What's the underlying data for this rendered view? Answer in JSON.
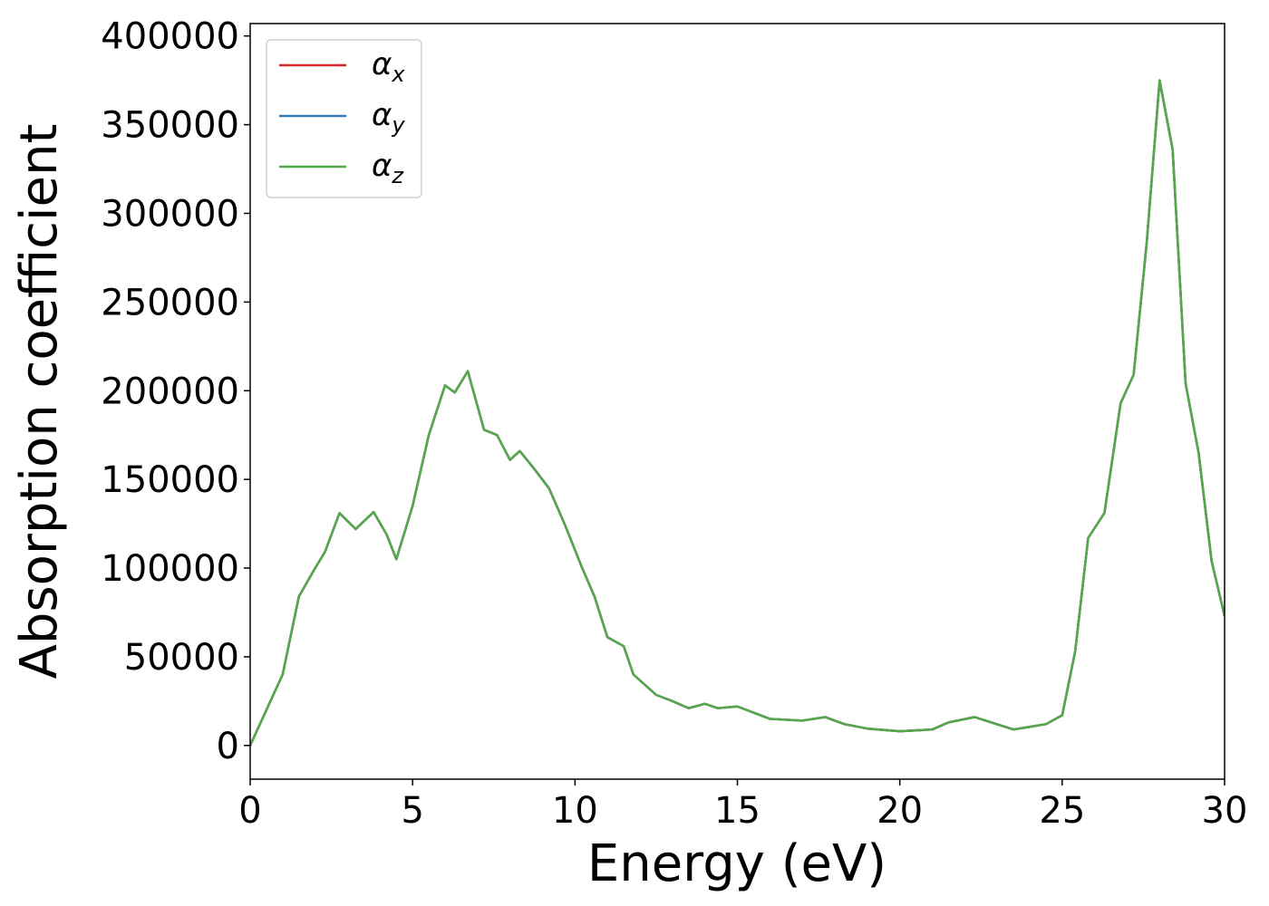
{
  "chart_data": {
    "type": "line",
    "xlabel": "Energy (eV)",
    "ylabel": "Absorption coefficient",
    "x": [
      0,
      0.5,
      1.0,
      1.5,
      2.0,
      2.3,
      2.75,
      3.25,
      3.8,
      4.2,
      4.5,
      5.0,
      5.5,
      6.0,
      6.3,
      6.7,
      7.2,
      7.6,
      8.0,
      8.3,
      8.7,
      9.2,
      9.7,
      10.2,
      10.6,
      11.0,
      11.5,
      11.8,
      12.5,
      13.0,
      13.5,
      14.0,
      14.4,
      15.0,
      16.0,
      17.0,
      17.7,
      18.3,
      19.0,
      20.0,
      21.0,
      21.5,
      22.3,
      23.5,
      24.5,
      25.0,
      25.4,
      25.8,
      26.3,
      26.8,
      27.2,
      27.6,
      28.0,
      28.4,
      28.8,
      29.2,
      29.6,
      30.0
    ],
    "series": [
      {
        "name": "αx",
        "color": "#d62728",
        "values": [
          0,
          20000,
          40000,
          84000,
          100000,
          109000,
          131000,
          122000,
          131600,
          119000,
          105000,
          135000,
          175000,
          203000,
          199000,
          211000,
          178000,
          175000,
          161000,
          166000,
          157000,
          145000,
          124000,
          101000,
          84000,
          61000,
          56000,
          40000,
          28500,
          25000,
          21000,
          23500,
          21000,
          22000,
          15000,
          14000,
          16000,
          12000,
          9500,
          8000,
          9000,
          13000,
          16000,
          9000,
          12000,
          17000,
          53000,
          117000,
          131000,
          193000,
          209000,
          283000,
          375000,
          336000,
          204000,
          165000,
          104000,
          73000
        ]
      },
      {
        "name": "αy",
        "color": "#3a78b5",
        "values": [
          0,
          20000,
          40000,
          84000,
          100000,
          109000,
          131000,
          122000,
          131600,
          119000,
          105000,
          135000,
          175000,
          203000,
          199000,
          211000,
          178000,
          175000,
          161000,
          166000,
          157000,
          145000,
          124000,
          101000,
          84000,
          61000,
          56000,
          40000,
          28500,
          25000,
          21000,
          23500,
          21000,
          22000,
          15000,
          14000,
          16000,
          12000,
          9500,
          8000,
          9000,
          13000,
          16000,
          9000,
          12000,
          17000,
          53000,
          117000,
          131000,
          193000,
          209000,
          283000,
          375000,
          336000,
          204000,
          165000,
          104000,
          73000
        ]
      },
      {
        "name": "αz",
        "color": "#55a84a",
        "values": [
          0,
          20000,
          40000,
          84000,
          100000,
          109000,
          131000,
          122000,
          131600,
          119000,
          105000,
          135000,
          175000,
          203000,
          199000,
          211000,
          178000,
          175000,
          161000,
          166000,
          157000,
          145000,
          124000,
          101000,
          84000,
          61000,
          56000,
          40000,
          28500,
          25000,
          21000,
          23500,
          21000,
          22000,
          15000,
          14000,
          16000,
          12000,
          9500,
          8000,
          9000,
          13000,
          16000,
          9000,
          12000,
          17000,
          53000,
          117000,
          131000,
          193000,
          209000,
          283000,
          375000,
          336000,
          204000,
          165000,
          104000,
          73000
        ]
      }
    ],
    "xlim": [
      0,
      30
    ],
    "xticks": [
      0,
      5,
      10,
      15,
      20,
      25,
      30
    ],
    "ylim": [
      -19000,
      407000
    ],
    "yticks": [
      0,
      50000,
      100000,
      150000,
      200000,
      250000,
      300000,
      350000,
      400000
    ],
    "legend": "upper left"
  }
}
